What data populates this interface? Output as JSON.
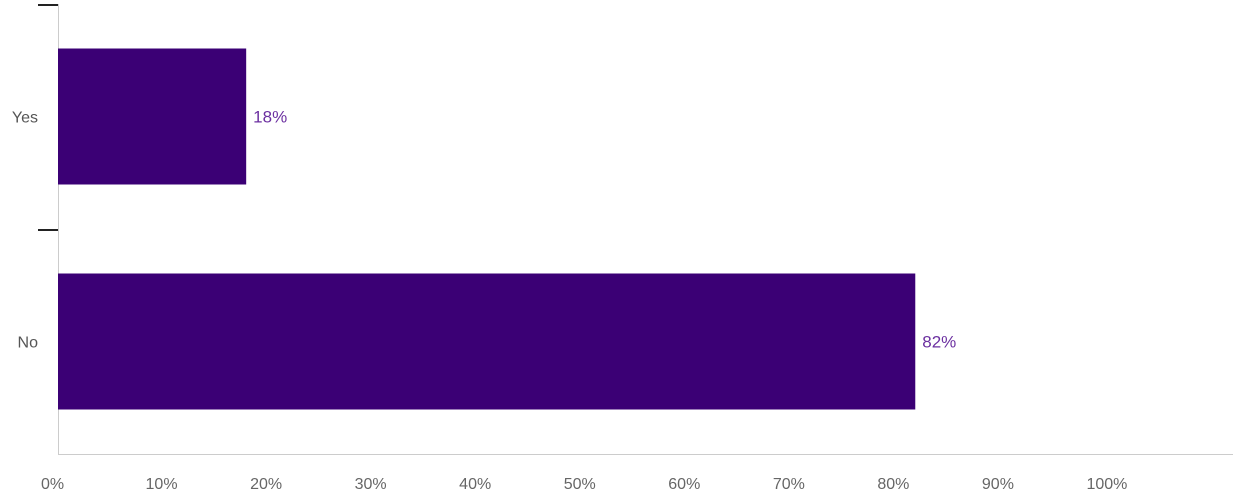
{
  "chart_data": {
    "type": "bar",
    "orientation": "horizontal",
    "categories": [
      "Yes",
      "No"
    ],
    "values": [
      18,
      82
    ],
    "value_labels": [
      "18%",
      "82%"
    ],
    "xlim": [
      0,
      110
    ],
    "x_ticks": [
      0,
      10,
      20,
      30,
      40,
      50,
      60,
      70,
      80,
      90,
      100
    ],
    "x_tick_labels": [
      "0%",
      "10%",
      "20%",
      "30%",
      "40%",
      "50%",
      "60%",
      "70%",
      "80%",
      "90%",
      "100%"
    ],
    "title": "",
    "xlabel": "",
    "ylabel": "",
    "grid": false,
    "legend": "none",
    "colors": {
      "bar": "#3b0075",
      "data_label": "#6b2fa0",
      "axis": "#cccccc",
      "tick_label": "#666666"
    }
  }
}
